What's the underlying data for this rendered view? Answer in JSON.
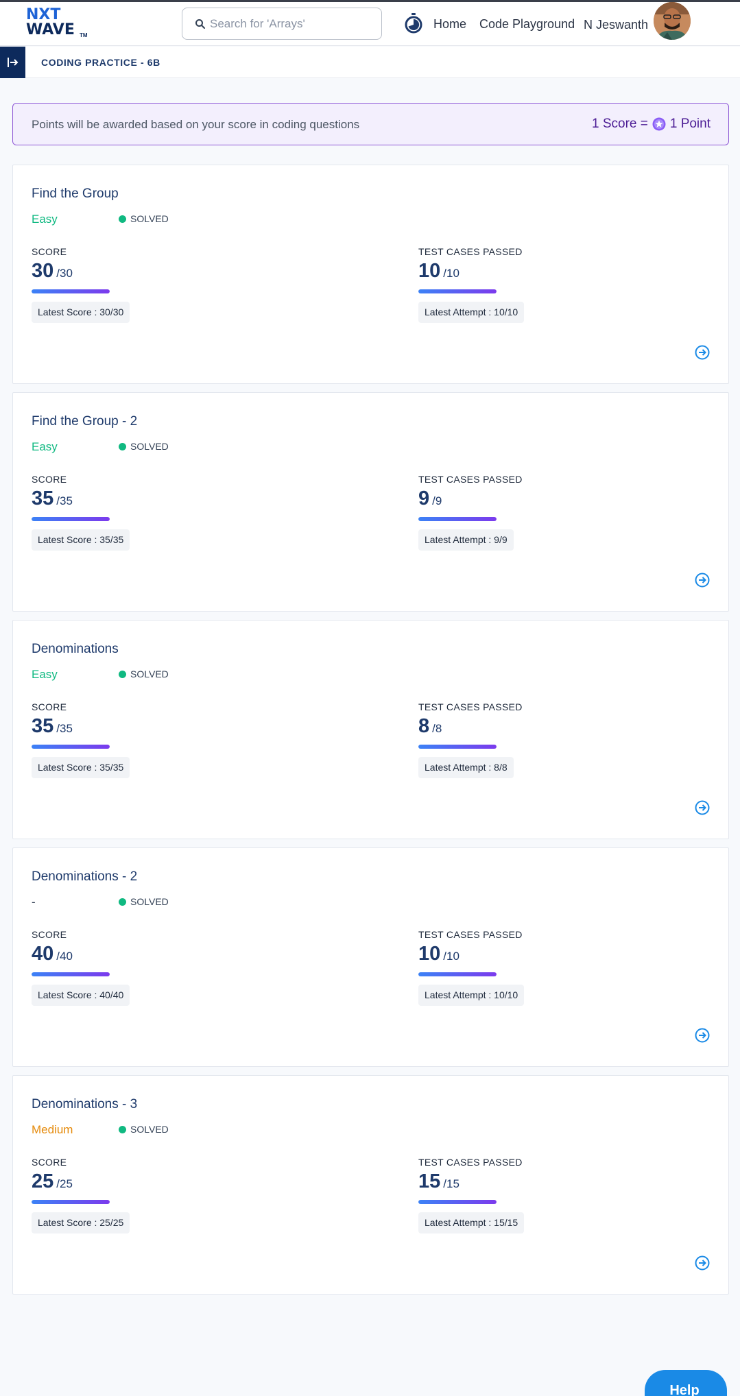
{
  "header": {
    "logo_line1": "NXT",
    "logo_line2": "WAVE",
    "logo_tm": "TM",
    "search_placeholder": "Search for 'Arrays'",
    "nav": {
      "home": "Home",
      "playground": "Code Playground"
    },
    "user_name": "N Jeswanth"
  },
  "subbar": {
    "title": "CODING PRACTICE - 6B"
  },
  "banner": {
    "text": "Points will be awarded based on your score in coding questions",
    "rate_left": "1 Score =",
    "rate_right": "1 Point"
  },
  "labels": {
    "score": "SCORE",
    "tests": "TEST CASES PASSED",
    "status": "SOLVED"
  },
  "questions": [
    {
      "title": "Find the Group",
      "difficulty": "Easy",
      "status": "SOLVED",
      "score": "30",
      "score_total": "/30",
      "score_fraction": 1.0,
      "latest_score": "Latest Score : 30/30",
      "tests": "10",
      "tests_total": "/10",
      "tests_fraction": 1.0,
      "latest_attempt": "Latest Attempt : 10/10"
    },
    {
      "title": "Find the Group - 2",
      "difficulty": "Easy",
      "status": "SOLVED",
      "score": "35",
      "score_total": "/35",
      "score_fraction": 1.0,
      "latest_score": "Latest Score : 35/35",
      "tests": "9",
      "tests_total": "/9",
      "tests_fraction": 1.0,
      "latest_attempt": "Latest Attempt : 9/9"
    },
    {
      "title": "Denominations",
      "difficulty": "Easy",
      "status": "SOLVED",
      "score": "35",
      "score_total": "/35",
      "score_fraction": 1.0,
      "latest_score": "Latest Score : 35/35",
      "tests": "8",
      "tests_total": "/8",
      "tests_fraction": 1.0,
      "latest_attempt": "Latest Attempt : 8/8"
    },
    {
      "title": "Denominations - 2",
      "difficulty": "-",
      "status": "SOLVED",
      "score": "40",
      "score_total": "/40",
      "score_fraction": 1.0,
      "latest_score": "Latest Score : 40/40",
      "tests": "10",
      "tests_total": "/10",
      "tests_fraction": 1.0,
      "latest_attempt": "Latest Attempt : 10/10"
    },
    {
      "title": "Denominations - 3",
      "difficulty": "Medium",
      "status": "SOLVED",
      "score": "25",
      "score_total": "/25",
      "score_fraction": 1.0,
      "latest_score": "Latest Score : 25/25",
      "tests": "15",
      "tests_total": "/15",
      "tests_fraction": 1.0,
      "latest_attempt": "Latest Attempt : 15/15"
    }
  ],
  "help_label": "Help",
  "colors": {
    "brand_navy": "#0d2a5c",
    "brand_blue": "#1e63d6",
    "easy": "#10b981",
    "medium": "#e58a0a",
    "solved_dot": "#10b981",
    "banner_border": "#8e58d6",
    "help": "#1a8ae6"
  },
  "icons": {
    "search": "search-icon",
    "timer": "stopwatch-icon",
    "sidebar": "sidebar-expand-icon",
    "coin": "star-coin-icon",
    "open": "arrow-circle-right-icon"
  }
}
